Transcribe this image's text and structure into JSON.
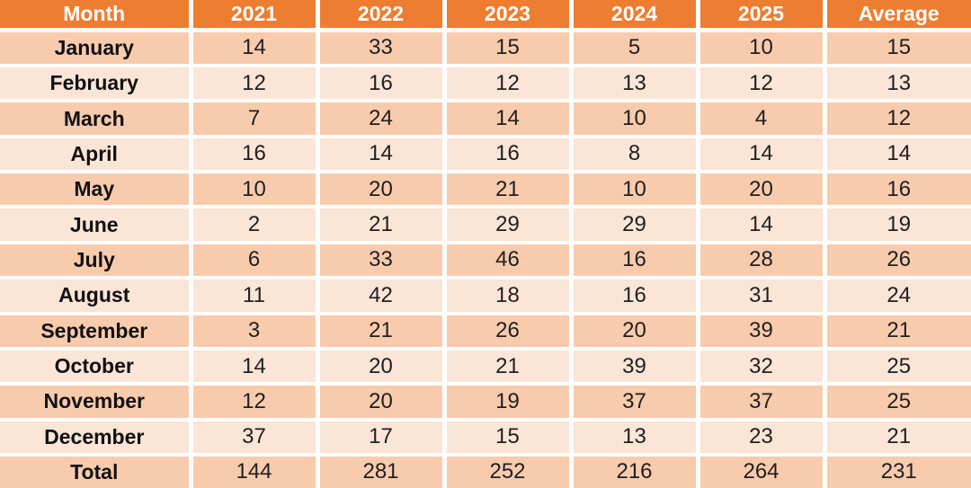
{
  "table": {
    "columns": [
      "Month",
      "2021",
      "2022",
      "2023",
      "2024",
      "2025",
      "Average"
    ],
    "rows": [
      {
        "label": "January",
        "values": [
          "14",
          "33",
          "15",
          "5",
          "10",
          "15"
        ]
      },
      {
        "label": "February",
        "values": [
          "12",
          "16",
          "12",
          "13",
          "12",
          "13"
        ]
      },
      {
        "label": "March",
        "values": [
          "7",
          "24",
          "14",
          "10",
          "4",
          "12"
        ]
      },
      {
        "label": "April",
        "values": [
          "16",
          "14",
          "16",
          "8",
          "14",
          "14"
        ]
      },
      {
        "label": "May",
        "values": [
          "10",
          "20",
          "21",
          "10",
          "20",
          "16"
        ]
      },
      {
        "label": "June",
        "values": [
          "2",
          "21",
          "29",
          "29",
          "14",
          "19"
        ]
      },
      {
        "label": "July",
        "values": [
          "6",
          "33",
          "46",
          "16",
          "28",
          "26"
        ]
      },
      {
        "label": "August",
        "values": [
          "11",
          "42",
          "18",
          "16",
          "31",
          "24"
        ]
      },
      {
        "label": "September",
        "values": [
          "3",
          "21",
          "26",
          "20",
          "39",
          "21"
        ]
      },
      {
        "label": "October",
        "values": [
          "14",
          "20",
          "21",
          "39",
          "32",
          "25"
        ]
      },
      {
        "label": "November",
        "values": [
          "12",
          "20",
          "19",
          "37",
          "37",
          "25"
        ]
      },
      {
        "label": "December",
        "values": [
          "37",
          "17",
          "15",
          "13",
          "23",
          "21"
        ]
      },
      {
        "label": "Total",
        "values": [
          "144",
          "281",
          "252",
          "216",
          "264",
          "231"
        ]
      }
    ]
  },
  "colors": {
    "header_bg": "#ED7D31",
    "header_text": "#FFFFFF",
    "row_dark": "#F8CBAD",
    "row_light": "#FBE5D6",
    "grid": "#FFFFFF",
    "body_text": "#1F1F1F",
    "label_text": "#111111"
  },
  "chart_data": {
    "type": "table",
    "categories": [
      "January",
      "February",
      "March",
      "April",
      "May",
      "June",
      "July",
      "August",
      "September",
      "October",
      "November",
      "December"
    ],
    "series": [
      {
        "name": "2021",
        "values": [
          14,
          12,
          7,
          16,
          10,
          2,
          6,
          11,
          3,
          14,
          12,
          37
        ]
      },
      {
        "name": "2022",
        "values": [
          33,
          16,
          24,
          14,
          20,
          21,
          33,
          42,
          21,
          20,
          20,
          17
        ]
      },
      {
        "name": "2023",
        "values": [
          15,
          12,
          14,
          16,
          21,
          29,
          46,
          18,
          26,
          21,
          19,
          15
        ]
      },
      {
        "name": "2024",
        "values": [
          5,
          13,
          10,
          8,
          10,
          29,
          16,
          16,
          20,
          39,
          37,
          13
        ]
      },
      {
        "name": "2025",
        "values": [
          10,
          12,
          4,
          14,
          20,
          14,
          28,
          31,
          39,
          32,
          37,
          23
        ]
      },
      {
        "name": "Average",
        "values": [
          15,
          13,
          12,
          14,
          16,
          19,
          26,
          24,
          21,
          25,
          25,
          21
        ]
      }
    ],
    "totals": {
      "label": "Total",
      "values": {
        "2021": 144,
        "2022": 281,
        "2023": 252,
        "2024": 216,
        "2025": 264,
        "Average": 231
      }
    },
    "xlabel": "Month",
    "legend_position": "header-row",
    "grid": true
  }
}
